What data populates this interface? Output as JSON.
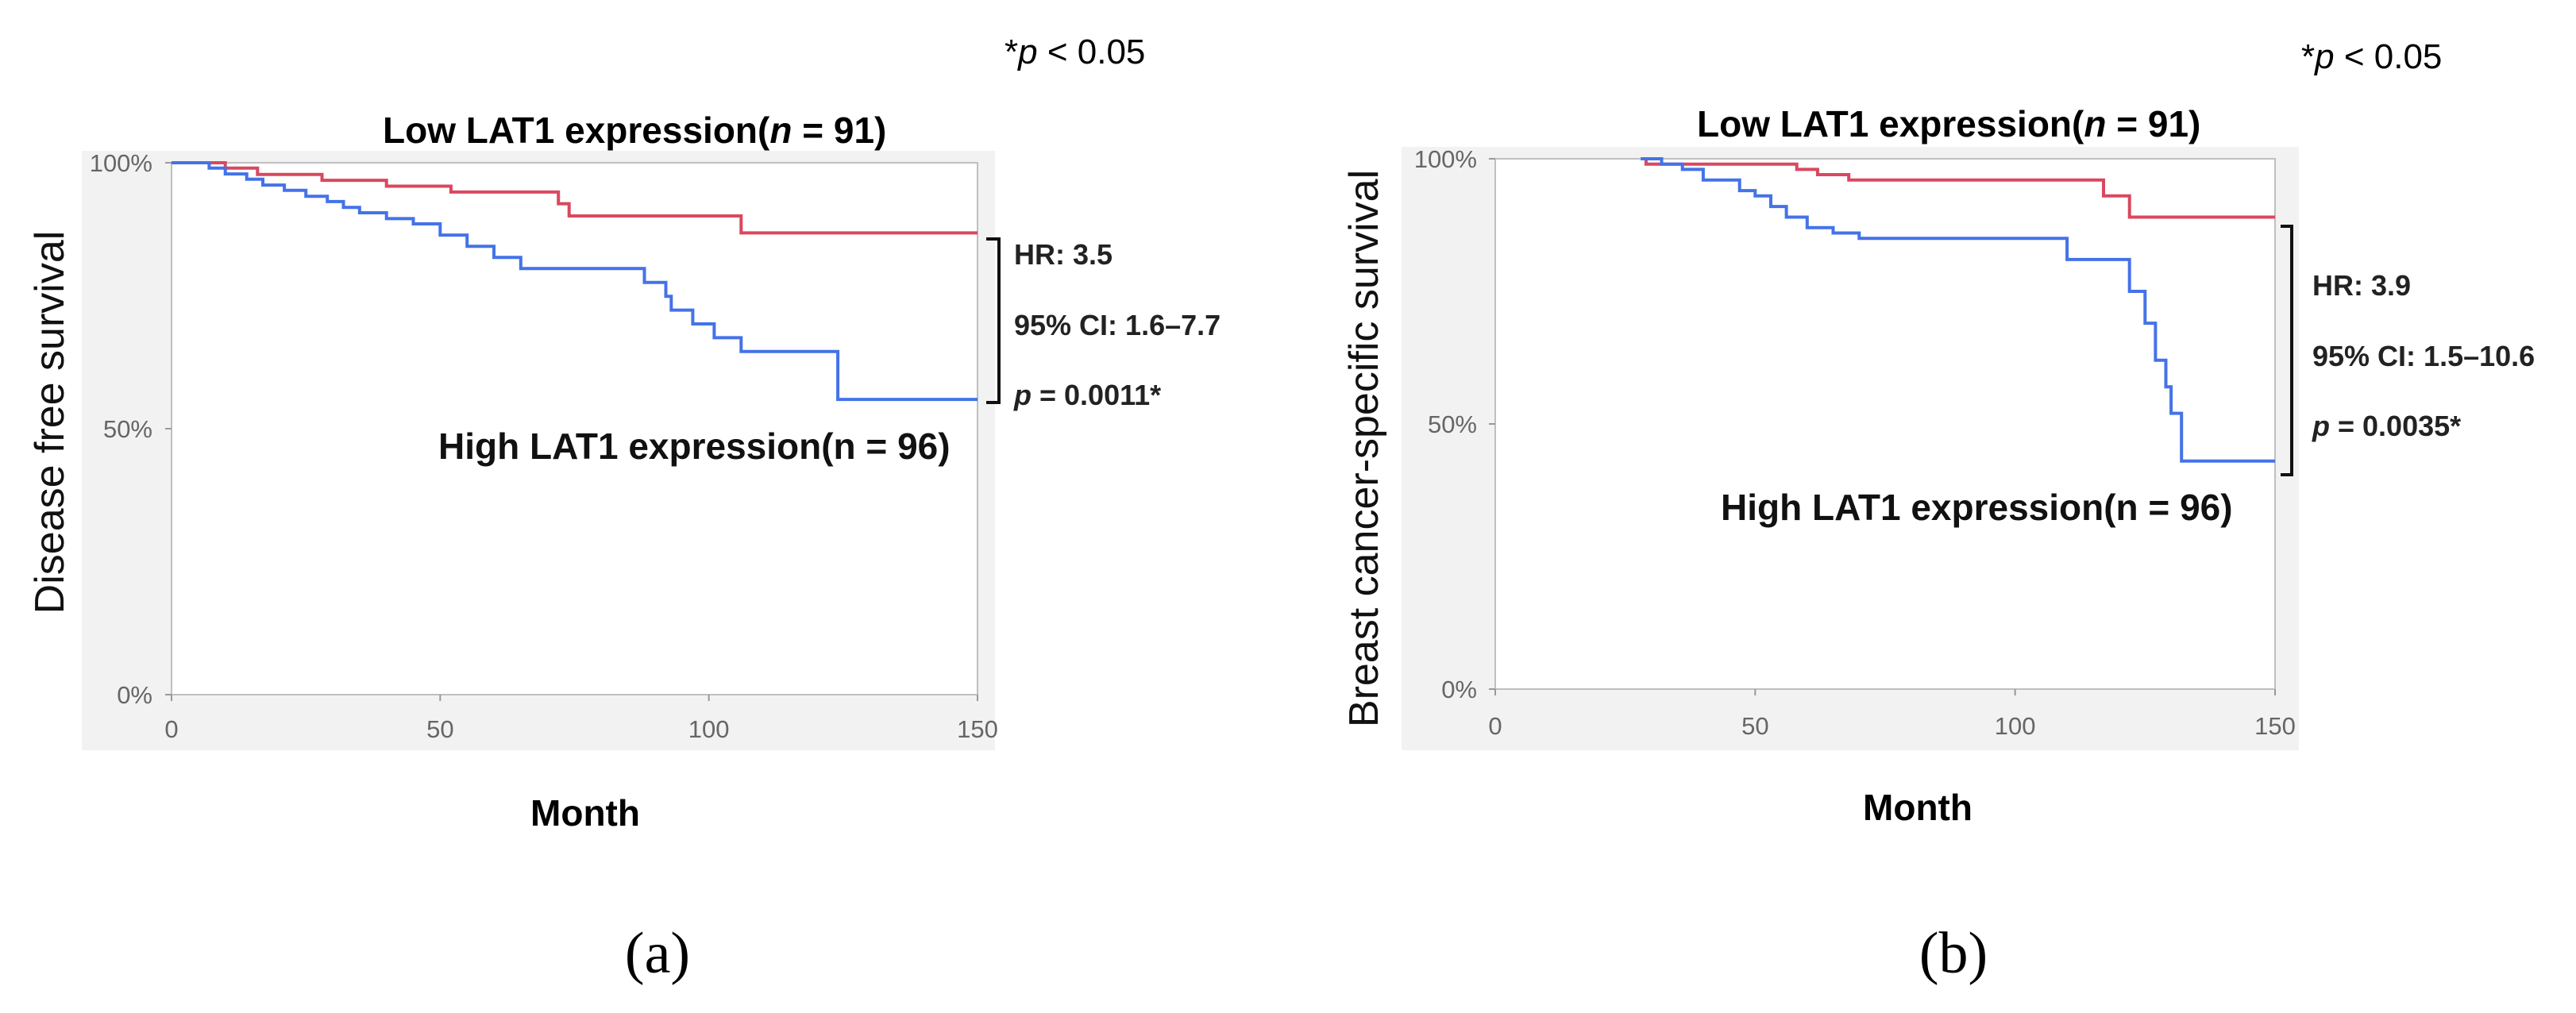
{
  "chart_data": [
    {
      "id": "a",
      "type": "line",
      "step": true,
      "panel_label": "(a)",
      "pvalue_note": {
        "prefix": "*",
        "italic": "p",
        "rest": " < 0.05"
      },
      "title": {
        "text": "Low LAT1 expression(",
        "italic": "n",
        "rest": " = 91)"
      },
      "high_label": "High LAT1 expression(n = 96)",
      "xlabel": "Month",
      "ylabel": "Disease free survival",
      "xlim": [
        0,
        150
      ],
      "ylim": [
        0,
        1
      ],
      "xticks": [
        0,
        50,
        100,
        150
      ],
      "yticks": [
        {
          "value": 0,
          "label": "0%"
        },
        {
          "value": 0.5,
          "label": "50%"
        },
        {
          "value": 1,
          "label": "100%"
        }
      ],
      "stats": {
        "hr": "HR: 3.5",
        "ci": "95% CI: 1.6–7.7",
        "p_italic": "p",
        "p_rest": " = 0.0011*"
      },
      "series": [
        {
          "name": "Low LAT1 expression",
          "color": "#d9485f",
          "x": [
            0,
            10,
            16,
            28,
            40,
            52,
            72,
            74,
            100,
            106,
            150
          ],
          "y": [
            1.0,
            0.99,
            0.978,
            0.967,
            0.956,
            0.945,
            0.923,
            0.9,
            0.9,
            0.868,
            0.868
          ]
        },
        {
          "name": "High LAT1 expression",
          "color": "#4472e8",
          "x": [
            0,
            7,
            10,
            14,
            17,
            21,
            25,
            29,
            32,
            35,
            40,
            45,
            50,
            55,
            60,
            65,
            86,
            88,
            92,
            93,
            97,
            101,
            106,
            124,
            150
          ],
          "y": [
            1.0,
            0.99,
            0.979,
            0.969,
            0.958,
            0.948,
            0.937,
            0.927,
            0.916,
            0.906,
            0.895,
            0.885,
            0.864,
            0.843,
            0.822,
            0.801,
            0.801,
            0.775,
            0.749,
            0.723,
            0.697,
            0.671,
            0.645,
            0.555,
            0.555
          ]
        }
      ]
    },
    {
      "id": "b",
      "type": "line",
      "step": true,
      "panel_label": "(b)",
      "pvalue_note": {
        "prefix": "*",
        "italic": "p",
        "rest": " < 0.05"
      },
      "title": {
        "text": "Low LAT1 expression(",
        "italic": "n",
        "rest": " = 91)"
      },
      "high_label": "High LAT1 expression(n = 96)",
      "xlabel": "Month",
      "ylabel": "Breast cancer-specific survival",
      "xlim": [
        0,
        150
      ],
      "ylim": [
        0,
        1
      ],
      "xticks": [
        0,
        50,
        100,
        150
      ],
      "yticks": [
        {
          "value": 0,
          "label": "0%"
        },
        {
          "value": 0.5,
          "label": "50%"
        },
        {
          "value": 1,
          "label": "100%"
        }
      ],
      "stats": {
        "hr": "HR: 3.9",
        "ci": "95% CI: 1.5–10.6",
        "p_italic": "p",
        "p_rest": " = 0.0035*"
      },
      "series": [
        {
          "name": "Low LAT1 expression",
          "color": "#d9485f",
          "x": [
            0,
            29,
            58,
            62,
            68,
            115,
            117,
            122,
            150
          ],
          "y": [
            1.0,
            0.99,
            0.98,
            0.97,
            0.96,
            0.96,
            0.93,
            0.89,
            0.89
          ],
          "start_x": 28
        },
        {
          "name": "High LAT1 expression",
          "color": "#4472e8",
          "x": [
            0,
            32,
            36,
            40,
            47,
            50,
            53,
            56,
            60,
            65,
            70,
            110,
            122,
            125,
            127,
            129,
            130,
            132,
            135,
            150
          ],
          "y": [
            1.0,
            0.99,
            0.98,
            0.96,
            0.94,
            0.93,
            0.91,
            0.89,
            0.87,
            0.86,
            0.85,
            0.81,
            0.75,
            0.69,
            0.62,
            0.57,
            0.52,
            0.43,
            0.43,
            0.43
          ],
          "start_x": 28
        }
      ]
    }
  ]
}
